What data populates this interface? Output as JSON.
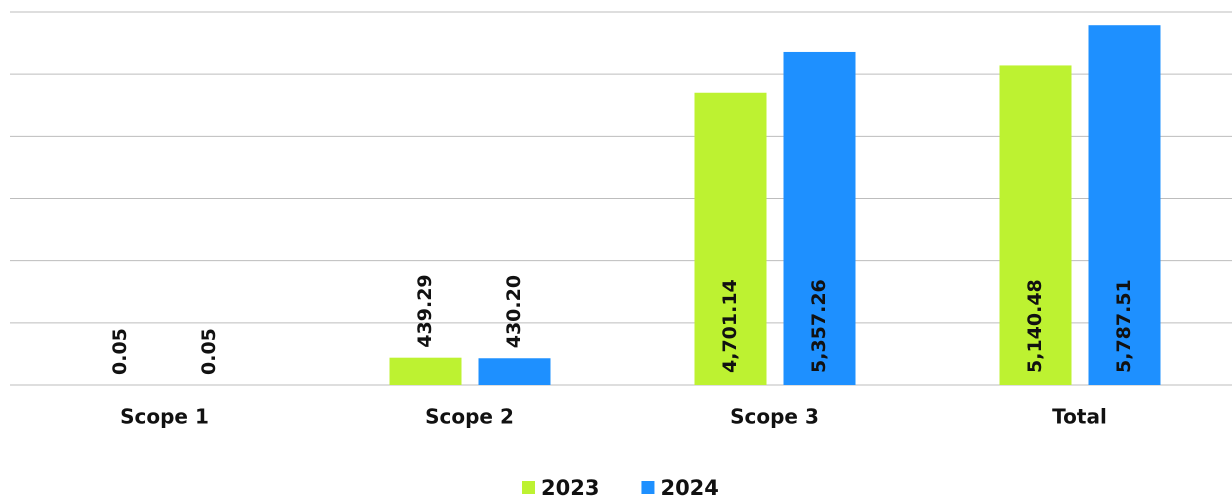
{
  "chart_data": {
    "type": "bar",
    "categories": [
      "Scope 1",
      "Scope 2",
      "Scope 3",
      "Total"
    ],
    "series": [
      {
        "name": "2023",
        "color": "#bdf231",
        "values": [
          0.05,
          439.29,
          4701.14,
          5140.48
        ],
        "value_labels": [
          "0.05",
          "439.29",
          "4,701.14",
          "5,140.48"
        ]
      },
      {
        "name": "2024",
        "color": "#1e90ff",
        "values": [
          0.05,
          430.2,
          5357.26,
          5787.51
        ],
        "value_labels": [
          "0.05",
          "430.20",
          "5,357.26",
          "5,787.51"
        ]
      }
    ],
    "ylim": [
      0,
      6000
    ],
    "yticks": [
      0,
      1000,
      2000,
      3000,
      4000,
      5000,
      6000
    ],
    "grid": true,
    "legend": "bottom"
  }
}
